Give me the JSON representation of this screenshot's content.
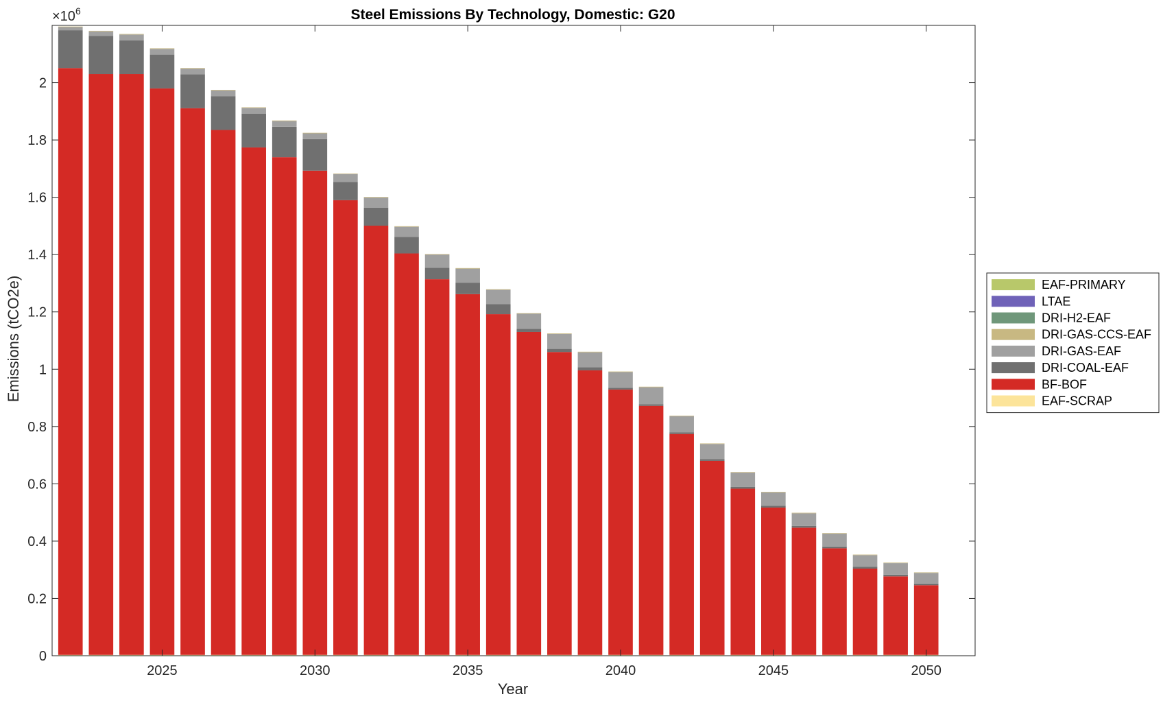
{
  "chart_data": {
    "type": "bar",
    "stacked": true,
    "title": "Steel Emissions By Technology, Domestic: G20",
    "xlabel": "Year",
    "ylabel": "Emissions (tCO2e)",
    "y_exponent_label": "×10",
    "y_exponent_power": "6",
    "xlim": [
      2021.4,
      2051.6
    ],
    "ylim": [
      0,
      2.2
    ],
    "x_ticks": [
      2025,
      2030,
      2035,
      2040,
      2045,
      2050
    ],
    "x_tick_labels": [
      "2025",
      "2030",
      "2035",
      "2040",
      "2045",
      "2050"
    ],
    "y_ticks": [
      0,
      0.2,
      0.4,
      0.6,
      0.8,
      1.0,
      1.2,
      1.4,
      1.6,
      1.8,
      2.0
    ],
    "y_tick_labels": [
      "0",
      "0.2",
      "0.4",
      "0.6",
      "0.8",
      "1",
      "1.2",
      "1.4",
      "1.6",
      "1.8",
      "2"
    ],
    "grid": false,
    "legend_position": "right",
    "x": [
      2022,
      2023,
      2024,
      2025,
      2026,
      2027,
      2028,
      2029,
      2030,
      2031,
      2032,
      2033,
      2034,
      2035,
      2036,
      2037,
      2038,
      2039,
      2040,
      2041,
      2042,
      2043,
      2044,
      2045,
      2046,
      2047,
      2048,
      2049,
      2050
    ],
    "series": [
      {
        "name": "EAF-SCRAP",
        "color": "#FCE49A",
        "values": [
          0.003,
          0.003,
          0.003,
          0.003,
          0.003,
          0.003,
          0.003,
          0.003,
          0.003,
          0.003,
          0.003,
          0.003,
          0.003,
          0.003,
          0.003,
          0.003,
          0.003,
          0.003,
          0.003,
          0.003,
          0.003,
          0.003,
          0.003,
          0.003,
          0.003,
          0.003,
          0.003,
          0.003,
          0.003
        ]
      },
      {
        "name": "BF-BOF",
        "color": "#D42A25",
        "values": [
          2.048,
          2.027,
          2.027,
          1.977,
          1.908,
          1.832,
          1.771,
          1.737,
          1.69,
          1.587,
          1.498,
          1.401,
          1.311,
          1.259,
          1.189,
          1.127,
          1.057,
          0.993,
          0.926,
          0.869,
          0.771,
          0.677,
          0.58,
          0.514,
          0.444,
          0.372,
          0.301,
          0.274,
          0.243
        ]
      },
      {
        "name": "DRI-COAL-EAF",
        "color": "#707070",
        "values": [
          0.132,
          0.133,
          0.118,
          0.118,
          0.118,
          0.118,
          0.118,
          0.106,
          0.11,
          0.063,
          0.063,
          0.058,
          0.04,
          0.04,
          0.035,
          0.011,
          0.011,
          0.011,
          0.006,
          0.006,
          0.006,
          0.006,
          0.006,
          0.006,
          0.006,
          0.006,
          0.006,
          0.006,
          0.006
        ]
      },
      {
        "name": "DRI-GAS-EAF",
        "color": "#A0A0A0",
        "values": [
          0.011,
          0.016,
          0.02,
          0.02,
          0.02,
          0.02,
          0.02,
          0.02,
          0.02,
          0.028,
          0.035,
          0.035,
          0.046,
          0.049,
          0.05,
          0.053,
          0.052,
          0.052,
          0.055,
          0.059,
          0.056,
          0.053,
          0.05,
          0.047,
          0.044,
          0.045,
          0.041,
          0.04,
          0.037
        ]
      },
      {
        "name": "DRI-GAS-CCS-EAF",
        "color": "#C8B882",
        "values": [
          0.002,
          0.002,
          0.002,
          0.002,
          0.002,
          0.002,
          0.002,
          0.002,
          0.002,
          0.002,
          0.002,
          0.002,
          0.002,
          0.002,
          0.002,
          0.002,
          0.002,
          0.002,
          0.002,
          0.002,
          0.002,
          0.002,
          0.002,
          0.002,
          0.002,
          0.002,
          0.002,
          0.002,
          0.002
        ]
      },
      {
        "name": "DRI-H2-EAF",
        "color": "#6F977A",
        "values": [
          0,
          0,
          0,
          0,
          0,
          0,
          0,
          0,
          0,
          0,
          0,
          0,
          0,
          0,
          0,
          0,
          0,
          0,
          0,
          0,
          0,
          0,
          0,
          0,
          0,
          0,
          0,
          0,
          0
        ]
      },
      {
        "name": "LTAE",
        "color": "#6F62B8",
        "values": [
          0,
          0,
          0,
          0,
          0,
          0,
          0,
          0,
          0,
          0,
          0,
          0,
          0,
          0,
          0,
          0,
          0,
          0,
          0,
          0,
          0,
          0,
          0,
          0,
          0,
          0,
          0,
          0,
          0
        ]
      },
      {
        "name": "EAF-PRIMARY",
        "color": "#B8C86A",
        "values": [
          0,
          0,
          0,
          0,
          0,
          0,
          0,
          0,
          0,
          0,
          0,
          0,
          0,
          0,
          0,
          0,
          0,
          0,
          0,
          0,
          0,
          0,
          0,
          0,
          0,
          0,
          0,
          0,
          0
        ]
      }
    ],
    "legend_order": [
      "EAF-PRIMARY",
      "LTAE",
      "DRI-H2-EAF",
      "DRI-GAS-CCS-EAF",
      "DRI-GAS-EAF",
      "DRI-COAL-EAF",
      "BF-BOF",
      "EAF-SCRAP"
    ]
  }
}
